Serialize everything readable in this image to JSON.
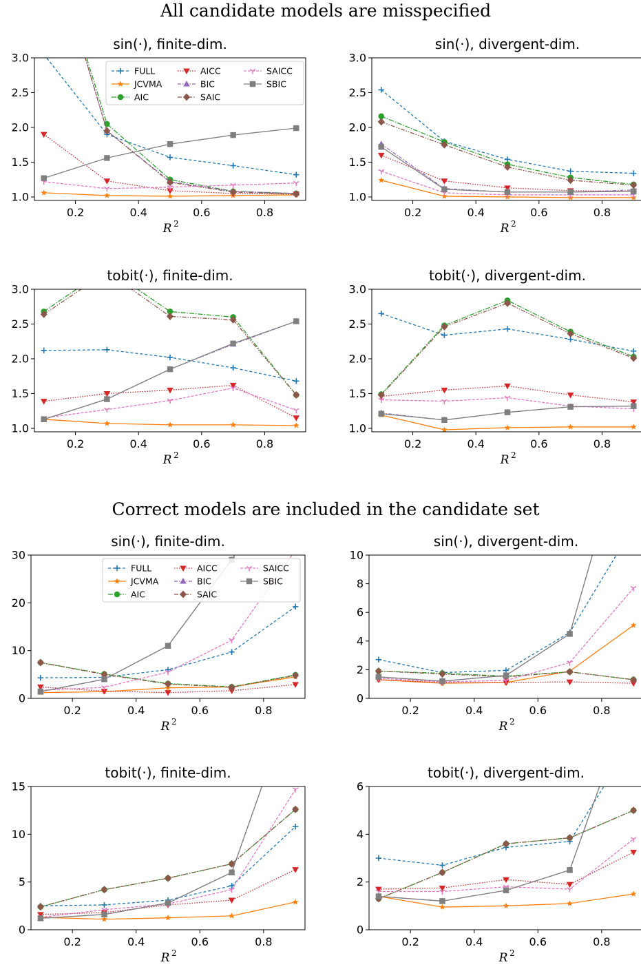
{
  "sections": [
    {
      "title": "All candidate models are misspecified"
    },
    {
      "title": "Correct models are included in the candidate set"
    }
  ],
  "colors": {
    "FULL": "#1f77b4",
    "JCVMA": "#ff7f0e",
    "AIC": "#2ca02c",
    "AICC": "#d62728",
    "BIC": "#9467bd",
    "SAIC": "#8c564b",
    "SAICC": "#e377c2",
    "SBIC": "#7f7f7f"
  },
  "legend_order": [
    "FULL",
    "JCVMA",
    "AIC",
    "AICC",
    "BIC",
    "SAIC",
    "SAICC",
    "SBIC"
  ],
  "chart_data": [
    {
      "type": "line",
      "section": 0,
      "title": "sin(·), finite-dim.",
      "xlabel": "R",
      "xlabel_sup": "2",
      "x": [
        0.1,
        0.3,
        0.5,
        0.7,
        0.9
      ],
      "xlim": [
        0.07,
        0.93
      ],
      "ylim": [
        0.95,
        3.0
      ],
      "xticks": [
        0.2,
        0.4,
        0.6,
        0.8
      ],
      "yticks": [
        1.0,
        1.5,
        2.0,
        2.5,
        3.0
      ],
      "ytick_labels": [
        "1.0",
        "1.5",
        "2.0",
        "2.5",
        "3.0"
      ],
      "legend": true,
      "series": [
        {
          "name": "FULL",
          "values": [
            3.05,
            1.9,
            1.57,
            1.45,
            1.32
          ]
        },
        {
          "name": "JCVMA",
          "values": [
            1.06,
            1.02,
            1.01,
            1.02,
            1.03
          ]
        },
        {
          "name": "AIC",
          "values": [
            5.0,
            2.05,
            1.25,
            1.08,
            1.05
          ]
        },
        {
          "name": "AICC",
          "values": [
            1.9,
            1.23,
            1.09,
            1.05,
            1.04
          ]
        },
        {
          "name": "BIC",
          "values": [
            5.0,
            1.95,
            1.22,
            1.08,
            1.05
          ]
        },
        {
          "name": "SAIC",
          "values": [
            5.0,
            1.95,
            1.21,
            1.07,
            1.04
          ]
        },
        {
          "name": "SAICC",
          "values": [
            1.22,
            1.12,
            1.14,
            1.17,
            1.2
          ]
        },
        {
          "name": "SBIC",
          "values": [
            1.27,
            1.56,
            1.76,
            1.89,
            1.99
          ]
        }
      ]
    },
    {
      "type": "line",
      "section": 0,
      "title": "sin(·), divergent-dim.",
      "xlabel": "R",
      "xlabel_sup": "2",
      "x": [
        0.1,
        0.3,
        0.5,
        0.7,
        0.9
      ],
      "xlim": [
        0.07,
        0.93
      ],
      "ylim": [
        0.95,
        3.0
      ],
      "xticks": [
        0.2,
        0.4,
        0.6,
        0.8
      ],
      "yticks": [
        1.0,
        1.5,
        2.0,
        2.5,
        3.0
      ],
      "ytick_labels": [
        "1.0",
        "1.5",
        "2.0",
        "2.5",
        "3.0"
      ],
      "legend": false,
      "series": [
        {
          "name": "FULL",
          "values": [
            2.54,
            1.8,
            1.54,
            1.37,
            1.34
          ]
        },
        {
          "name": "JCVMA",
          "values": [
            1.24,
            1.01,
            1.0,
            0.99,
            0.99
          ]
        },
        {
          "name": "AIC",
          "values": [
            2.16,
            1.79,
            1.47,
            1.28,
            1.18
          ]
        },
        {
          "name": "AICC",
          "values": [
            1.6,
            1.23,
            1.13,
            1.09,
            1.08
          ]
        },
        {
          "name": "BIC",
          "values": [
            1.76,
            1.12,
            1.07,
            1.07,
            1.1
          ]
        },
        {
          "name": "SAIC",
          "values": [
            2.08,
            1.75,
            1.43,
            1.24,
            1.17
          ]
        },
        {
          "name": "SAICC",
          "values": [
            1.37,
            1.06,
            1.03,
            1.03,
            1.03
          ]
        },
        {
          "name": "SBIC",
          "values": [
            1.72,
            1.11,
            1.07,
            1.07,
            1.08
          ]
        }
      ]
    },
    {
      "type": "line",
      "section": 0,
      "title": "tobit(·), finite-dim.",
      "xlabel": "R",
      "xlabel_sup": "2",
      "x": [
        0.1,
        0.3,
        0.5,
        0.7,
        0.9
      ],
      "xlim": [
        0.07,
        0.93
      ],
      "ylim": [
        0.95,
        3.0
      ],
      "xticks": [
        0.2,
        0.4,
        0.6,
        0.8
      ],
      "yticks": [
        1.0,
        1.5,
        2.0,
        2.5,
        3.0
      ],
      "ytick_labels": [
        "1.0",
        "1.5",
        "2.0",
        "2.5",
        "3.0"
      ],
      "legend": false,
      "series": [
        {
          "name": "FULL",
          "values": [
            2.12,
            2.13,
            2.02,
            1.87,
            1.68
          ]
        },
        {
          "name": "JCVMA",
          "values": [
            1.13,
            1.07,
            1.05,
            1.05,
            1.04
          ]
        },
        {
          "name": "AIC",
          "values": [
            2.68,
            3.3,
            2.68,
            2.6,
            1.48
          ]
        },
        {
          "name": "AICC",
          "values": [
            1.39,
            1.5,
            1.55,
            1.62,
            1.15
          ]
        },
        {
          "name": "BIC",
          "values": [
            1.13,
            1.42,
            1.85,
            2.21,
            2.54
          ]
        },
        {
          "name": "SAIC",
          "values": [
            2.64,
            3.25,
            2.61,
            2.56,
            1.48
          ]
        },
        {
          "name": "SAICC",
          "values": [
            1.15,
            1.27,
            1.4,
            1.58,
            1.26
          ]
        },
        {
          "name": "SBIC",
          "values": [
            1.13,
            1.42,
            1.85,
            2.22,
            2.54
          ]
        }
      ]
    },
    {
      "type": "line",
      "section": 0,
      "title": "tobit(·), divergent-dim.",
      "xlabel": "R",
      "xlabel_sup": "2",
      "x": [
        0.1,
        0.3,
        0.5,
        0.7,
        0.9
      ],
      "xlim": [
        0.07,
        0.93
      ],
      "ylim": [
        0.95,
        3.0
      ],
      "xticks": [
        0.2,
        0.4,
        0.6,
        0.8
      ],
      "yticks": [
        1.0,
        1.5,
        2.0,
        2.5,
        3.0
      ],
      "ytick_labels": [
        "1.0",
        "1.5",
        "2.0",
        "2.5",
        "3.0"
      ],
      "legend": false,
      "series": [
        {
          "name": "FULL",
          "values": [
            2.65,
            2.34,
            2.43,
            2.28,
            2.11
          ]
        },
        {
          "name": "JCVMA",
          "values": [
            1.19,
            0.98,
            1.01,
            1.02,
            1.02
          ]
        },
        {
          "name": "AIC",
          "values": [
            1.49,
            2.48,
            2.84,
            2.39,
            2.03
          ]
        },
        {
          "name": "AICC",
          "values": [
            1.46,
            1.55,
            1.61,
            1.48,
            1.38
          ]
        },
        {
          "name": "BIC",
          "values": [
            1.22,
            1.12,
            1.23,
            1.31,
            1.32
          ]
        },
        {
          "name": "SAIC",
          "values": [
            1.48,
            2.46,
            2.8,
            2.36,
            2.01
          ]
        },
        {
          "name": "SAICC",
          "values": [
            1.41,
            1.39,
            1.44,
            1.32,
            1.28
          ]
        },
        {
          "name": "SBIC",
          "values": [
            1.21,
            1.12,
            1.23,
            1.31,
            1.32
          ]
        }
      ]
    },
    {
      "type": "line",
      "section": 1,
      "title": "sin(·), finite-dim.",
      "xlabel": "R",
      "xlabel_sup": "2",
      "x": [
        0.1,
        0.3,
        0.5,
        0.7,
        0.9
      ],
      "xlim": [
        0.07,
        0.93
      ],
      "ylim": [
        0,
        30
      ],
      "xticks": [
        0.2,
        0.4,
        0.6,
        0.8
      ],
      "yticks": [
        0,
        10,
        20,
        30
      ],
      "ytick_labels": [
        "0",
        "10",
        "20",
        "30"
      ],
      "legend": true,
      "series": [
        {
          "name": "FULL",
          "values": [
            4.3,
            4.4,
            6.0,
            9.7,
            19.2
          ]
        },
        {
          "name": "JCVMA",
          "values": [
            1.2,
            1.4,
            2.2,
            2.4,
            4.5
          ]
        },
        {
          "name": "AIC",
          "values": [
            7.5,
            5.1,
            3.1,
            2.4,
            4.9
          ]
        },
        {
          "name": "AICC",
          "values": [
            2.4,
            1.5,
            1.2,
            1.6,
            2.9
          ]
        },
        {
          "name": "BIC",
          "values": [
            1.4,
            4.0,
            11.0,
            29.0,
            50.0
          ]
        },
        {
          "name": "SAIC",
          "values": [
            7.5,
            5.0,
            3.0,
            2.3,
            4.8
          ]
        },
        {
          "name": "SAICC",
          "values": [
            1.7,
            2.3,
            5.5,
            12.2,
            31.0
          ]
        },
        {
          "name": "SBIC",
          "values": [
            1.4,
            4.0,
            11.0,
            29.0,
            50.0
          ]
        }
      ]
    },
    {
      "type": "line",
      "section": 1,
      "title": "sin(·), divergent-dim.",
      "xlabel": "R",
      "xlabel_sup": "2",
      "x": [
        0.1,
        0.3,
        0.5,
        0.7,
        0.9
      ],
      "xlim": [
        0.07,
        0.93
      ],
      "ylim": [
        0,
        10
      ],
      "xticks": [
        0.2,
        0.4,
        0.6,
        0.8
      ],
      "yticks": [
        0,
        2,
        4,
        6,
        8,
        10
      ],
      "ytick_labels": [
        "0",
        "2",
        "4",
        "6",
        "8",
        "10"
      ],
      "legend": false,
      "series": [
        {
          "name": "FULL",
          "values": [
            2.7,
            1.8,
            1.95,
            4.6,
            12.0
          ]
        },
        {
          "name": "JCVMA",
          "values": [
            1.3,
            1.05,
            1.1,
            1.9,
            5.1
          ]
        },
        {
          "name": "AIC",
          "values": [
            1.9,
            1.75,
            1.55,
            1.85,
            1.3
          ]
        },
        {
          "name": "AICC",
          "values": [
            1.3,
            1.1,
            1.1,
            1.15,
            1.05
          ]
        },
        {
          "name": "BIC",
          "values": [
            1.5,
            1.2,
            1.6,
            4.5,
            20.0
          ]
        },
        {
          "name": "SAIC",
          "values": [
            1.9,
            1.7,
            1.5,
            1.85,
            1.3
          ]
        },
        {
          "name": "SAICC",
          "values": [
            1.4,
            1.15,
            1.25,
            2.5,
            7.7
          ]
        },
        {
          "name": "SBIC",
          "values": [
            1.5,
            1.2,
            1.6,
            4.5,
            20.0
          ]
        }
      ]
    },
    {
      "type": "line",
      "section": 1,
      "title": "tobit(·), finite-dim.",
      "xlabel": "R",
      "xlabel_sup": "2",
      "x": [
        0.1,
        0.3,
        0.5,
        0.7,
        0.9
      ],
      "xlim": [
        0.07,
        0.93
      ],
      "ylim": [
        0,
        15
      ],
      "xticks": [
        0.2,
        0.4,
        0.6,
        0.8
      ],
      "yticks": [
        0,
        5,
        10,
        15
      ],
      "ytick_labels": [
        "0",
        "5",
        "10",
        "15"
      ],
      "legend": false,
      "series": [
        {
          "name": "FULL",
          "values": [
            2.5,
            2.6,
            3.1,
            4.6,
            10.8
          ]
        },
        {
          "name": "JCVMA",
          "values": [
            1.3,
            1.1,
            1.25,
            1.45,
            2.9
          ]
        },
        {
          "name": "AIC",
          "values": [
            2.4,
            4.2,
            5.4,
            6.9,
            12.6
          ]
        },
        {
          "name": "AICC",
          "values": [
            1.6,
            1.8,
            2.6,
            3.1,
            6.3
          ]
        },
        {
          "name": "BIC",
          "values": [
            1.2,
            1.6,
            2.8,
            6.0,
            25.0
          ]
        },
        {
          "name": "SAIC",
          "values": [
            2.4,
            4.2,
            5.4,
            6.9,
            12.6
          ]
        },
        {
          "name": "SAICC",
          "values": [
            1.3,
            2.1,
            2.7,
            4.2,
            14.7
          ]
        },
        {
          "name": "SBIC",
          "values": [
            1.2,
            1.6,
            2.8,
            6.0,
            25.0
          ]
        }
      ]
    },
    {
      "type": "line",
      "section": 1,
      "title": "tobit(·), divergent-dim.",
      "xlabel": "R",
      "xlabel_sup": "2",
      "x": [
        0.1,
        0.3,
        0.5,
        0.7,
        0.9
      ],
      "xlim": [
        0.07,
        0.93
      ],
      "ylim": [
        0,
        6
      ],
      "xticks": [
        0.2,
        0.4,
        0.6,
        0.8
      ],
      "yticks": [
        0,
        2,
        4,
        6
      ],
      "ytick_labels": [
        "0",
        "2",
        "4",
        "6"
      ],
      "legend": false,
      "series": [
        {
          "name": "FULL",
          "values": [
            3.0,
            2.7,
            3.45,
            3.7,
            8.0
          ]
        },
        {
          "name": "JCVMA",
          "values": [
            1.4,
            0.95,
            1.0,
            1.1,
            1.5
          ]
        },
        {
          "name": "AIC",
          "values": [
            1.3,
            2.4,
            3.6,
            3.85,
            5.0
          ]
        },
        {
          "name": "AICC",
          "values": [
            1.7,
            1.75,
            2.1,
            1.9,
            3.25
          ]
        },
        {
          "name": "BIC",
          "values": [
            1.4,
            1.2,
            1.65,
            2.5,
            10.0
          ]
        },
        {
          "name": "SAIC",
          "values": [
            1.3,
            2.4,
            3.6,
            3.85,
            5.0
          ]
        },
        {
          "name": "SAICC",
          "values": [
            1.6,
            1.6,
            1.8,
            1.7,
            3.8
          ]
        },
        {
          "name": "SBIC",
          "values": [
            1.4,
            1.2,
            1.65,
            2.5,
            10.0
          ]
        }
      ]
    }
  ]
}
